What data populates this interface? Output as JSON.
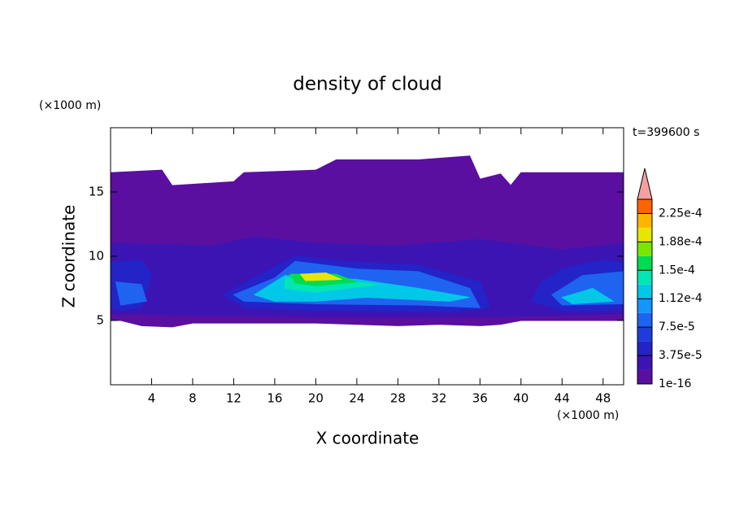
{
  "chart_data": {
    "type": "contour",
    "title": "density of cloud",
    "xlabel": "X coordinate",
    "ylabel": "Z coordinate",
    "x_unit": "(×1000 m)",
    "y_unit": "(×1000 m)",
    "annotation": "t=399600 s",
    "xlim": [
      0,
      50
    ],
    "ylim": [
      0,
      20
    ],
    "xticks": [
      4,
      8,
      12,
      16,
      20,
      24,
      28,
      32,
      36,
      40,
      44,
      48
    ],
    "yticks": [
      5,
      10,
      15
    ],
    "colorbar": {
      "levels": [
        1e-16,
        1.875e-05,
        3.75e-05,
        5.625e-05,
        7.5e-05,
        9.375e-05,
        0.0001125,
        0.00013125,
        0.00015,
        0.00016875,
        0.0001875,
        0.00020625,
        0.000225,
        0.00024375
      ],
      "colors": [
        "#5a0fa0",
        "#3c14b4",
        "#2323c8",
        "#1e3cdc",
        "#1e64f0",
        "#1496ff",
        "#00c8e6",
        "#00e6b4",
        "#00dc50",
        "#78e600",
        "#e6e600",
        "#ffb400",
        "#ff6400",
        "#f01e1e"
      ],
      "extend_color": "#f4a0a0",
      "ticks": [
        {
          "value": 1e-16,
          "label": "1e-16"
        },
        {
          "value": 3.75e-05,
          "label": "3.75e-5"
        },
        {
          "value": 7.5e-05,
          "label": "7.5e-5"
        },
        {
          "value": 0.0001125,
          "label": "1.12e-4"
        },
        {
          "value": 0.00015,
          "label": "1.5e-4"
        },
        {
          "value": 0.0001875,
          "label": "1.88e-4"
        },
        {
          "value": 0.000225,
          "label": "2.25e-4"
        }
      ]
    },
    "regions": [
      {
        "level": 0,
        "x": [
          0,
          5,
          6,
          12,
          13,
          20,
          22,
          30,
          35,
          36,
          38,
          39,
          40,
          50,
          50,
          44,
          40,
          38,
          36,
          32,
          28,
          20,
          12,
          8,
          6,
          3,
          1,
          0
        ],
        "z": [
          16.5,
          16.7,
          15.5,
          15.8,
          16.5,
          16.7,
          17.5,
          17.5,
          17.8,
          16,
          16.4,
          15.5,
          16.5,
          16.5,
          5,
          5,
          5,
          4.7,
          4.6,
          4.7,
          4.6,
          4.8,
          4.8,
          4.8,
          4.5,
          4.6,
          5,
          5
        ]
      },
      {
        "level": 1,
        "x": [
          0,
          10,
          14,
          20,
          28,
          36,
          44,
          50,
          50,
          36,
          20,
          0
        ],
        "z": [
          11,
          10.8,
          11.5,
          11,
          10.8,
          11.3,
          10.5,
          11,
          5.5,
          5.3,
          5.3,
          5.5
        ]
      },
      {
        "level": 2,
        "x": [
          0,
          3,
          4,
          3,
          1,
          0
        ],
        "z": [
          9.5,
          9.7,
          8.5,
          6,
          5.8,
          6
        ]
      },
      {
        "level": 2,
        "x": [
          11,
          14,
          18,
          24,
          30,
          36,
          37,
          33,
          20,
          13
        ],
        "z": [
          7,
          8.3,
          10,
          9.5,
          9.3,
          8,
          6,
          5.7,
          5.8,
          6
        ]
      },
      {
        "level": 2,
        "x": [
          42,
          44,
          48,
          50,
          50,
          44,
          41
        ],
        "z": [
          8,
          9,
          9.7,
          9.5,
          5.8,
          5.8,
          6.5
        ]
      },
      {
        "level": 4,
        "x": [
          12,
          16,
          18,
          24,
          30,
          35,
          36,
          30,
          20,
          13
        ],
        "z": [
          7,
          8.3,
          9.6,
          9,
          8.8,
          7.5,
          6,
          6.2,
          6.3,
          6.5
        ]
      },
      {
        "level": 4,
        "x": [
          43,
          46,
          50,
          50,
          44
        ],
        "z": [
          7,
          8.5,
          8.8,
          6.3,
          6.2
        ]
      },
      {
        "level": 4,
        "x": [
          0.5,
          3,
          3.5,
          1
        ],
        "z": [
          8,
          7.8,
          6.5,
          6.2
        ]
      },
      {
        "level": 6,
        "x": [
          14,
          17,
          24,
          30,
          35,
          33,
          25,
          20,
          16
        ],
        "z": [
          7,
          8.5,
          8.2,
          7.5,
          6.8,
          6.5,
          6.8,
          6.5,
          6.5
        ]
      },
      {
        "level": 6,
        "x": [
          44,
          47,
          49,
          45
        ],
        "z": [
          6.8,
          7.5,
          6.5,
          6.3
        ]
      },
      {
        "level": 7,
        "x": [
          17,
          22,
          26,
          20,
          17
        ],
        "z": [
          8.3,
          8.2,
          7.8,
          7.2,
          7.5
        ]
      },
      {
        "level": 8,
        "x": [
          17.5,
          22,
          24,
          20,
          18
        ],
        "z": [
          8.6,
          8.6,
          8,
          7.7,
          7.9
        ]
      },
      {
        "level": 10,
        "x": [
          18.5,
          21,
          22.5,
          19
        ],
        "z": [
          8.6,
          8.7,
          8.2,
          8.1
        ]
      }
    ]
  }
}
